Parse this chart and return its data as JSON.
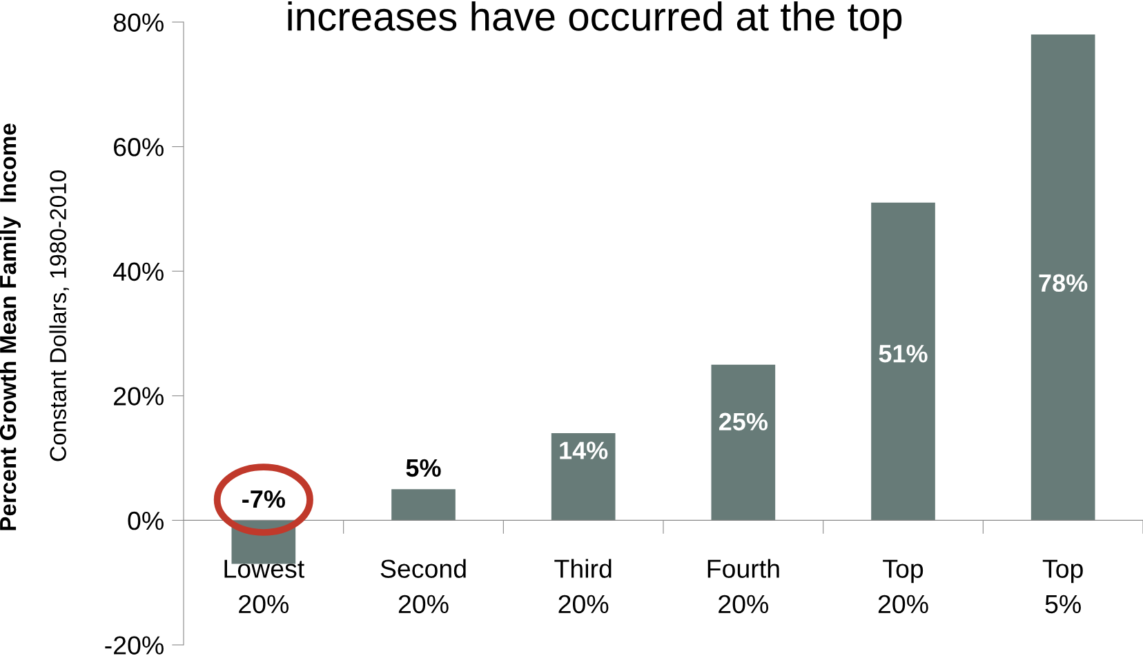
{
  "chart_data": {
    "type": "bar",
    "title": "increases have occurred at the top",
    "ylabel": "Percent Growth Mean Family  Income",
    "annotations": [
      "Constant Dollars, 1980-2010"
    ],
    "categories": [
      "Lowest\n20%",
      "Second\n20%",
      "Third\n20%",
      "Fourth\n20%",
      "Top\n20%",
      "Top\n5%"
    ],
    "values": [
      -7,
      5,
      14,
      25,
      51,
      78
    ],
    "value_labels": [
      "-7%",
      "5%",
      "14%",
      "25%",
      "51%",
      "78%"
    ],
    "color": "#677b78",
    "ylim": [
      -20,
      80
    ],
    "yticks": [
      {
        "value": -20,
        "label": "-20%"
      },
      {
        "value": 0,
        "label": "0%"
      },
      {
        "value": 20,
        "label": "20%"
      },
      {
        "value": 40,
        "label": "40%"
      },
      {
        "value": 60,
        "label": "60%"
      },
      {
        "value": 80,
        "label": "80%"
      }
    ],
    "grid": false,
    "legend": false
  }
}
